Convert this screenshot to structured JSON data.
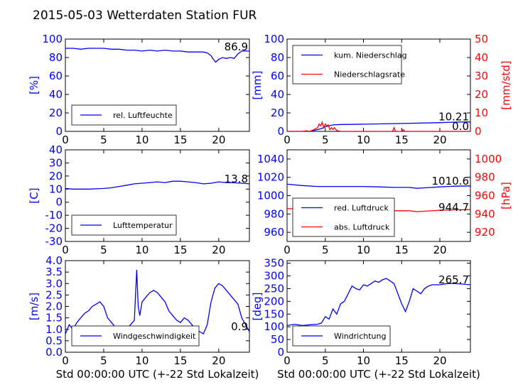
{
  "figure": {
    "title": "2015-05-03 Wetterdaten Station FUR",
    "xlabel": "Std 00:00:00 UTC (+-22 Std Lokalzeit)"
  },
  "colors": {
    "primary": "#0000ff",
    "secondary": "#ff0000",
    "axis": "#000000"
  },
  "chart_data": [
    {
      "id": "humidity",
      "type": "line",
      "xlim": [
        0,
        24
      ],
      "ylim": [
        0,
        100
      ],
      "xticks": [
        0,
        5,
        10,
        15,
        20
      ],
      "yticks": [
        0,
        20,
        40,
        60,
        80,
        100
      ],
      "ylabel": "[%]",
      "xlabel": "",
      "legend_position": "lower-left",
      "last_value_label": "86.9",
      "series": [
        {
          "name": "rel. Luftfeuchte",
          "color": "#0000ff",
          "x": [
            0,
            1,
            2,
            3,
            4,
            5,
            6,
            7,
            8,
            9,
            10,
            11,
            12,
            13,
            14,
            15,
            16,
            17,
            18,
            18.5,
            19,
            19.3,
            19.6,
            20,
            20.5,
            21,
            21.5,
            22,
            22.5,
            23,
            23.5,
            24
          ],
          "y": [
            90,
            90,
            89,
            90,
            90,
            90,
            89,
            89,
            88,
            88,
            87,
            88,
            87,
            88,
            87,
            87,
            86,
            86,
            86,
            85,
            82,
            78,
            75,
            78,
            80,
            79,
            80,
            79,
            84,
            87,
            87,
            87
          ]
        }
      ]
    },
    {
      "id": "precip",
      "type": "line",
      "xlim": [
        0,
        24
      ],
      "ylim": [
        0,
        100
      ],
      "ylim_right": [
        0,
        50
      ],
      "xticks": [
        0,
        5,
        10,
        15,
        20
      ],
      "yticks": [
        0,
        20,
        40,
        60,
        80,
        100
      ],
      "yticks_right": [
        0,
        10,
        20,
        30,
        40,
        50
      ],
      "ylabel": "[mm]",
      "ylabel_right": "[mm/std]",
      "xlabel": "",
      "legend_position": "top-left",
      "last_value_label": "10.21",
      "last_value_label_2": "0.0",
      "series": [
        {
          "name": "kum. Niederschlag",
          "color": "#0000ff",
          "axis": "left",
          "x": [
            0,
            2,
            3,
            3.5,
            4,
            4.5,
            5,
            5.5,
            6,
            7,
            10,
            15,
            20,
            22,
            24
          ],
          "y": [
            0,
            0,
            0.3,
            1,
            2,
            3,
            5,
            6,
            7,
            7.5,
            7.8,
            8.5,
            9.5,
            10,
            10.2
          ]
        },
        {
          "name": "Niederschlagsrate",
          "color": "#ff0000",
          "axis": "right",
          "x": [
            0,
            2,
            2.5,
            3,
            3.5,
            4,
            4.2,
            4.4,
            4.6,
            4.8,
            5,
            5.2,
            5.4,
            5.6,
            5.8,
            6,
            6.2,
            6.5,
            7,
            8,
            13.8,
            14,
            14.2,
            15,
            15.2,
            15.4,
            16,
            24
          ],
          "y": [
            0,
            0,
            0.3,
            0,
            1,
            2,
            4,
            3,
            5,
            2,
            4,
            3,
            3.5,
            1,
            2,
            1,
            2,
            0.5,
            0,
            0,
            0,
            2,
            0,
            0,
            1,
            0,
            0,
            0
          ]
        }
      ]
    },
    {
      "id": "temperature",
      "type": "line",
      "xlim": [
        0,
        24
      ],
      "ylim": [
        -30,
        40
      ],
      "xticks": [
        0,
        5,
        10,
        15,
        20
      ],
      "yticks": [
        -30,
        -20,
        -10,
        0,
        10,
        20,
        30,
        40
      ],
      "ylabel": "[C]",
      "xlabel": "",
      "legend_position": "lower-left",
      "last_value_label": "13.8",
      "series": [
        {
          "name": "Lufttemperatur",
          "color": "#0000ff",
          "x": [
            0,
            1,
            2,
            3,
            4,
            5,
            6,
            7,
            8,
            9,
            10,
            11,
            12,
            13,
            14,
            15,
            16,
            17,
            18,
            19,
            20,
            21,
            22,
            23,
            24
          ],
          "y": [
            10.5,
            10,
            10,
            10,
            10.2,
            10.5,
            11,
            12,
            13,
            14,
            14.5,
            15,
            15.5,
            15,
            16,
            16,
            15.5,
            15,
            14,
            14.5,
            15.5,
            15,
            14.8,
            14.5,
            14
          ]
        }
      ]
    },
    {
      "id": "pressure",
      "type": "line",
      "xlim": [
        0,
        24
      ],
      "ylim": [
        950,
        1050
      ],
      "ylim_right": [
        910,
        1010
      ],
      "xticks": [
        0,
        5,
        10,
        15,
        20
      ],
      "yticks": [
        960,
        980,
        1000,
        1020,
        1040
      ],
      "yticks_right": [
        920,
        940,
        960,
        980,
        1000
      ],
      "ylabel": "",
      "ylabel_right": "[hPa]",
      "xlabel": "",
      "legend_position": "lower-left",
      "last_value_label": "1010.6",
      "last_value_label_2": "944.7",
      "series": [
        {
          "name": "red. Luftdruck",
          "color": "#0000ff",
          "axis": "left",
          "x": [
            0,
            2,
            4,
            6,
            8,
            10,
            12,
            14,
            16,
            17,
            18,
            20,
            22,
            24
          ],
          "y": [
            1012.5,
            1011,
            1010,
            1010,
            1010,
            1010,
            1009.5,
            1009,
            1009,
            1008,
            1008.5,
            1009.5,
            1010.3,
            1010.6
          ]
        },
        {
          "name": "abs. Luftdruck",
          "color": "#ff0000",
          "axis": "right",
          "x": [
            0,
            2,
            4,
            6,
            8,
            10,
            12,
            14,
            16,
            17,
            18,
            20,
            22,
            24
          ],
          "y": [
            946,
            945,
            944.5,
            944,
            944,
            944,
            944,
            943.5,
            943.5,
            942.5,
            943,
            944,
            944.5,
            944.7
          ]
        }
      ]
    },
    {
      "id": "wind_speed",
      "type": "line",
      "xlim": [
        0,
        24
      ],
      "ylim": [
        0,
        4
      ],
      "xticks": [
        0,
        5,
        10,
        15,
        20
      ],
      "yticks": [
        0.0,
        0.5,
        1.0,
        1.5,
        2.0,
        2.5,
        3.0,
        3.5,
        4.0
      ],
      "ylabel": "[m/s]",
      "xlabel": "Std 00:00:00 UTC (+-22 Std Lokalzeit)",
      "legend_position": "lower-center",
      "last_value_label": "0.9",
      "series": [
        {
          "name": "Windgeschwindigkeit",
          "color": "#0000ff",
          "x": [
            0,
            0.5,
            1,
            1.5,
            2,
            2.5,
            3,
            3.5,
            4,
            4.5,
            5,
            5.5,
            6,
            6.5,
            7,
            7.5,
            8,
            8.5,
            9,
            9.3,
            9.5,
            9.7,
            10,
            10.5,
            11,
            11.5,
            12,
            12.5,
            13,
            13.5,
            14,
            14.5,
            15,
            15.5,
            16,
            16.5,
            17,
            17.5,
            18,
            18.5,
            19,
            19.5,
            20,
            20.5,
            21,
            21.5,
            22,
            22.5,
            23,
            23.5,
            24
          ],
          "y": [
            0.8,
            1.2,
            1.0,
            1.3,
            1.5,
            1.7,
            1.8,
            2.0,
            2.1,
            2.2,
            2.0,
            1.5,
            1.3,
            1.1,
            0.7,
            0.9,
            1.0,
            1.2,
            1.4,
            3.6,
            2.0,
            1.6,
            2.2,
            2.4,
            2.6,
            2.7,
            2.6,
            2.4,
            2.2,
            1.8,
            1.6,
            1.4,
            1.3,
            1.5,
            1.4,
            1.2,
            1.0,
            0.9,
            0.8,
            1.2,
            2.2,
            2.8,
            3.0,
            2.9,
            2.7,
            2.5,
            2.3,
            2.1,
            1.5,
            1.2,
            0.9
          ]
        }
      ]
    },
    {
      "id": "wind_direction",
      "type": "line",
      "xlim": [
        0,
        24
      ],
      "ylim": [
        0,
        360
      ],
      "xticks": [
        0,
        5,
        10,
        15,
        20
      ],
      "yticks": [
        0,
        50,
        100,
        150,
        200,
        250,
        300,
        350
      ],
      "ylabel": "[deg]",
      "xlabel": "Std 00:00:00 UTC (+-22 Std Lokalzeit)",
      "legend_position": "lower-left",
      "last_value_label": "265.7",
      "series": [
        {
          "name": "Windrichtung",
          "color": "#0000ff",
          "x": [
            0,
            1,
            2,
            3,
            4,
            4.5,
            5,
            5.5,
            6,
            6.5,
            7,
            7.5,
            8,
            8.5,
            9,
            9.5,
            10,
            10.5,
            11,
            11.5,
            12,
            12.5,
            13,
            13.5,
            14,
            14.5,
            15,
            15.5,
            16,
            16.5,
            17,
            17.5,
            18,
            18.5,
            19,
            20,
            21,
            22,
            23,
            24
          ],
          "y": [
            105,
            110,
            105,
            108,
            110,
            115,
            140,
            130,
            170,
            150,
            190,
            200,
            230,
            260,
            250,
            245,
            265,
            260,
            270,
            280,
            275,
            285,
            290,
            280,
            270,
            230,
            190,
            160,
            200,
            250,
            240,
            230,
            250,
            260,
            265,
            265,
            270,
            270,
            268,
            265
          ]
        }
      ]
    }
  ]
}
